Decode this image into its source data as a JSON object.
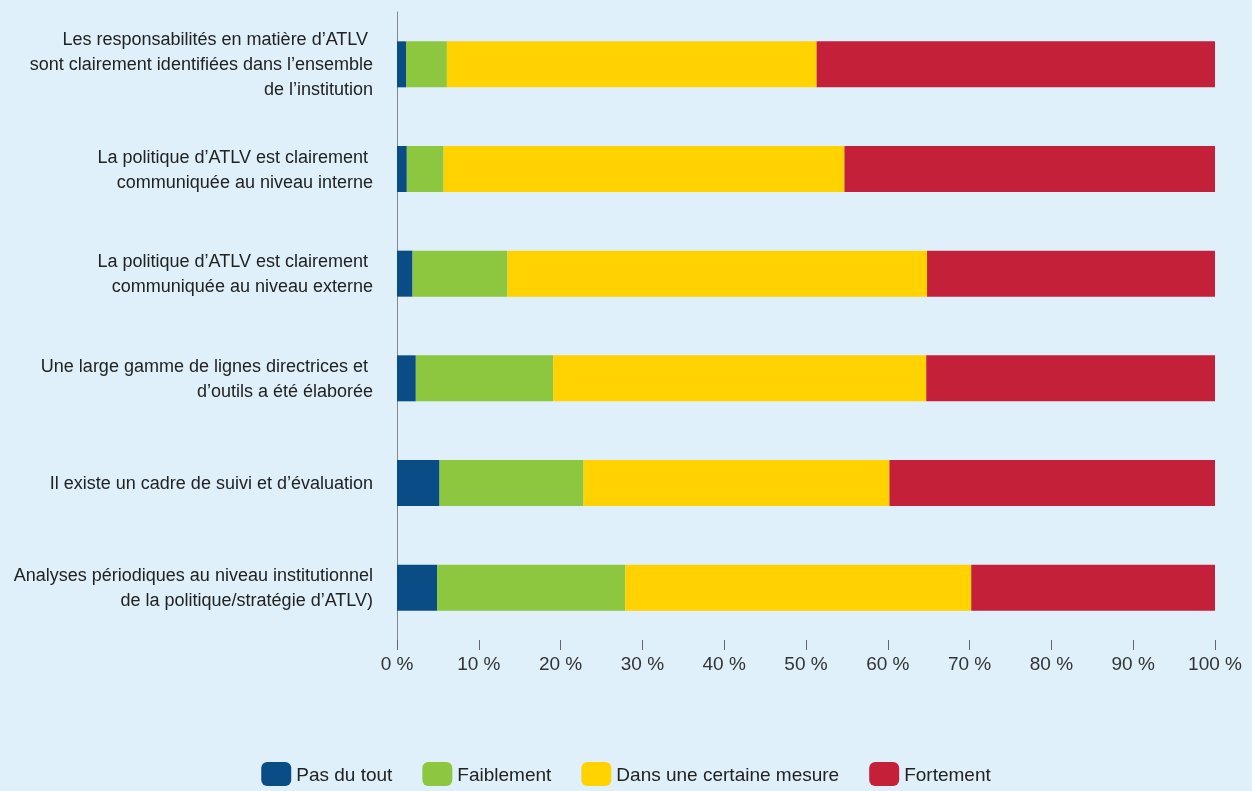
{
  "chart_data": {
    "type": "bar",
    "orientation": "horizontal",
    "stacked": true,
    "legend": "bottom",
    "grid": false,
    "categories": [
      "Les responsabilités en matière d’ATLV sont clairement identifiées dans l’ensemble de l’institution",
      "La politique d’ATLV est clairement communiquée au niveau interne",
      "La politique d’ATLV est clairement communiquée au niveau externe",
      "Une large gamme de lignes directrices et d’outils a été élaborée",
      "Il existe un cadre de suivi et d’évaluation",
      "Analyses périodiques au niveau institutionnel de la politique/stratégie d’ATLV)"
    ],
    "series": [
      {
        "name": "Pas du tout",
        "color": "#0a4d86",
        "values": [
          1.1,
          1.2,
          1.9,
          2.3,
          5.2,
          4.9
        ]
      },
      {
        "name": "Faiblement",
        "color": "#8dc63f",
        "values": [
          5.0,
          4.5,
          11.6,
          16.8,
          17.6,
          23.0
        ]
      },
      {
        "name": "Dans une certaine mesure",
        "color": "#ffd200",
        "values": [
          45.2,
          49.0,
          51.3,
          45.6,
          37.4,
          42.3
        ]
      },
      {
        "name": "Fortement",
        "color": "#c4203a",
        "values": [
          48.7,
          45.3,
          35.2,
          35.3,
          39.8,
          29.8
        ]
      }
    ],
    "xlim": [
      0,
      100
    ],
    "xticks": [
      {
        "value": 0,
        "label": "0 %"
      },
      {
        "value": 10,
        "label": "10 %"
      },
      {
        "value": 20,
        "label": "20 %"
      },
      {
        "value": 30,
        "label": "30 %"
      },
      {
        "value": 40,
        "label": "40 %"
      },
      {
        "value": 50,
        "label": "50 %"
      },
      {
        "value": 60,
        "label": "60 %"
      },
      {
        "value": 70,
        "label": "70 %"
      },
      {
        "value": 80,
        "label": "80 %"
      },
      {
        "value": 90,
        "label": "90 %"
      },
      {
        "value": 100,
        "label": "100 %"
      }
    ]
  }
}
